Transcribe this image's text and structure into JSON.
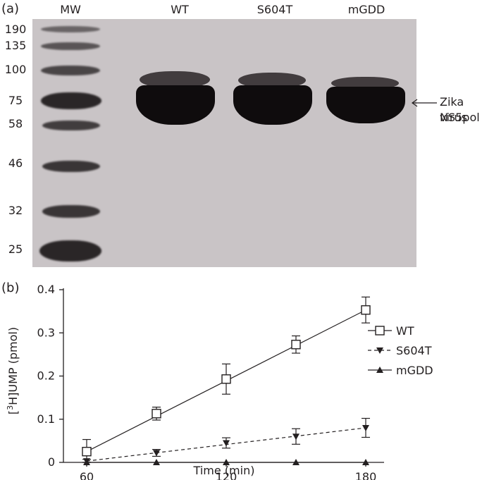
{
  "panel_a": {
    "label": "(a)",
    "lane_headers": [
      "MW",
      "WT",
      "S604T",
      "mGDD"
    ],
    "mw_markers": [
      "190",
      "135",
      "100",
      "75",
      "58",
      "46",
      "32",
      "25"
    ],
    "annotation_line1": "Zika virus",
    "annotation_line2": "NS5pol"
  },
  "panel_b": {
    "label": "(b)"
  },
  "chart_data": {
    "type": "line",
    "x": [
      60,
      90,
      120,
      150,
      180
    ],
    "xlim": [
      60,
      180
    ],
    "ylim": [
      0,
      0.4
    ],
    "xticks": [
      60,
      120,
      180
    ],
    "yticks": [
      0,
      0.1,
      0.2,
      0.3,
      0.4
    ],
    "ytick_labels": [
      "0",
      "0.1",
      "0.2",
      "0.3",
      "0.4"
    ],
    "xlabel": "Time (min)",
    "ylabel_pre": "[",
    "ylabel_sup": "3",
    "ylabel_post": "H]UMP (pmol)",
    "legend_position": "right",
    "series": [
      {
        "name": "WT",
        "marker": "open-square",
        "line": "solid",
        "values": [
          0.025,
          0.113,
          0.193,
          0.273,
          0.353
        ],
        "errors": [
          0.028,
          0.015,
          0.035,
          0.02,
          0.03
        ]
      },
      {
        "name": "S604T",
        "marker": "filled-triangle-down",
        "line": "dashed",
        "values": [
          0.003,
          0.022,
          0.045,
          0.06,
          0.08
        ],
        "errors": [
          0.004,
          0.008,
          0.012,
          0.018,
          0.022
        ]
      },
      {
        "name": "mGDD",
        "marker": "filled-triangle-up",
        "line": "solid",
        "values": [
          0,
          0,
          0,
          0,
          0
        ],
        "errors": [
          0,
          0,
          0,
          0,
          0
        ]
      }
    ]
  }
}
